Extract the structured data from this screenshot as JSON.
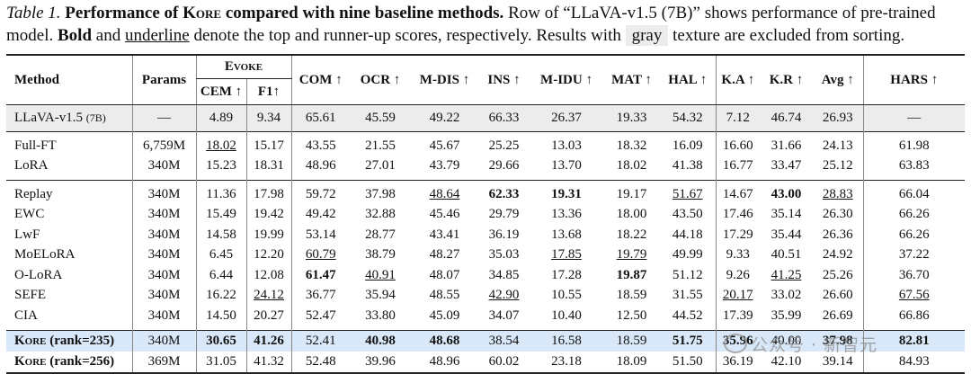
{
  "caption": {
    "label": "Table 1.",
    "title_pre": "Performance of",
    "title_method": "Kore",
    "title_post": "compared with nine baseline methods.",
    "text1": "Row of “LLaVA-v1.5 (7B)” shows performance of pre-trained model.",
    "bold_word": "Bold",
    "and_word": "and",
    "underline_word": "underline",
    "text2": "denote the top and runner-up scores, respectively. Results with",
    "gray_word": "gray",
    "text3": "texture are excluded from sorting."
  },
  "header": {
    "method": "Method",
    "params": "Params",
    "evoke": "Evoke",
    "cem": "CEM ↑",
    "f1": "F1↑",
    "com": "COM ↑",
    "ocr": "OCR ↑",
    "mdis": "M-DIS ↑",
    "ins": "INS ↑",
    "midu": "M-IDU ↑",
    "mat": "MAT ↑",
    "hal": "HAL ↑",
    "ka": "K.A ↑",
    "kr": "K.R ↑",
    "avg": "Avg ↑",
    "hars": "HARS ↑"
  },
  "rows": {
    "llava": {
      "method": "LLaVA-v1.5",
      "suffix": "(7B)",
      "params": "—",
      "cem": "4.89",
      "f1": "9.34",
      "com": "65.61",
      "ocr": "45.59",
      "mdis": "49.22",
      "ins": "66.33",
      "midu": "26.37",
      "mat": "19.33",
      "hal": "54.32",
      "ka": "7.12",
      "kr": "46.74",
      "avg": "26.93",
      "hars": "—"
    },
    "fullft": {
      "method": "Full-FT",
      "params": "6,759M",
      "cem": "18.02",
      "f1": "15.17",
      "com": "43.55",
      "ocr": "21.55",
      "mdis": "45.67",
      "ins": "25.25",
      "midu": "13.03",
      "mat": "18.32",
      "hal": "16.09",
      "ka": "16.60",
      "kr": "31.66",
      "avg": "24.13",
      "hars": "61.98"
    },
    "lora": {
      "method": "LoRA",
      "params": "340M",
      "cem": "15.23",
      "f1": "18.31",
      "com": "48.96",
      "ocr": "27.01",
      "mdis": "43.79",
      "ins": "29.66",
      "midu": "13.70",
      "mat": "18.02",
      "hal": "41.38",
      "ka": "16.77",
      "kr": "33.47",
      "avg": "25.12",
      "hars": "63.83"
    },
    "replay": {
      "method": "Replay",
      "params": "340M",
      "cem": "11.36",
      "f1": "17.98",
      "com": "59.72",
      "ocr": "37.98",
      "mdis": "48.64",
      "ins": "62.33",
      "midu": "19.31",
      "mat": "19.17",
      "hal": "51.67",
      "ka": "14.67",
      "kr": "43.00",
      "avg": "28.83",
      "hars": "66.04"
    },
    "ewc": {
      "method": "EWC",
      "params": "340M",
      "cem": "15.49",
      "f1": "19.42",
      "com": "49.42",
      "ocr": "32.88",
      "mdis": "45.46",
      "ins": "29.79",
      "midu": "13.36",
      "mat": "18.00",
      "hal": "43.50",
      "ka": "17.46",
      "kr": "35.14",
      "avg": "26.30",
      "hars": "66.26"
    },
    "lwf": {
      "method": "LwF",
      "params": "340M",
      "cem": "14.58",
      "f1": "19.99",
      "com": "53.14",
      "ocr": "28.77",
      "mdis": "43.41",
      "ins": "36.19",
      "midu": "13.68",
      "mat": "18.22",
      "hal": "44.18",
      "ka": "17.29",
      "kr": "35.44",
      "avg": "26.36",
      "hars": "66.26"
    },
    "moelora": {
      "method": "MoELoRA",
      "params": "340M",
      "cem": "6.45",
      "f1": "12.20",
      "com": "60.79",
      "ocr": "38.79",
      "mdis": "48.27",
      "ins": "35.03",
      "midu": "17.85",
      "mat": "19.79",
      "hal": "49.99",
      "ka": "9.33",
      "kr": "40.51",
      "avg": "24.92",
      "hars": "37.22"
    },
    "olora": {
      "method": "O-LoRA",
      "params": "340M",
      "cem": "6.44",
      "f1": "12.08",
      "com": "61.47",
      "ocr": "40.91",
      "mdis": "48.07",
      "ins": "34.85",
      "midu": "17.28",
      "mat": "19.87",
      "hal": "51.12",
      "ka": "9.26",
      "kr": "41.25",
      "avg": "25.26",
      "hars": "36.70"
    },
    "sefe": {
      "method": "SEFE",
      "params": "340M",
      "cem": "16.22",
      "f1": "24.12",
      "com": "36.77",
      "ocr": "35.94",
      "mdis": "48.55",
      "ins": "42.90",
      "midu": "10.55",
      "mat": "18.59",
      "hal": "31.55",
      "ka": "20.17",
      "kr": "33.02",
      "avg": "26.60",
      "hars": "67.56"
    },
    "cia": {
      "method": "CIA",
      "params": "340M",
      "cem": "14.50",
      "f1": "20.27",
      "com": "52.47",
      "ocr": "33.80",
      "mdis": "45.09",
      "ins": "34.07",
      "midu": "10.40",
      "mat": "12.50",
      "hal": "44.52",
      "ka": "17.39",
      "kr": "35.99",
      "avg": "26.69",
      "hars": "66.86"
    },
    "kore235": {
      "method": "Kore",
      "suffix": "(rank=235)",
      "params": "340M",
      "cem": "30.65",
      "f1": "41.26",
      "com": "52.41",
      "ocr": "40.98",
      "mdis": "48.68",
      "ins": "38.54",
      "midu": "16.58",
      "mat": "18.59",
      "hal": "51.75",
      "ka": "35.96",
      "kr": "40.00",
      "avg": "37.98",
      "hars": "82.81"
    },
    "kore256": {
      "method": "Kore",
      "suffix": "(rank=256)",
      "params": "369M",
      "cem": "31.05",
      "f1": "41.32",
      "com": "52.48",
      "ocr": "39.96",
      "mdis": "48.96",
      "ins": "60.02",
      "midu": "23.18",
      "mat": "18.09",
      "hal": "51.50",
      "ka": "36.19",
      "kr": "42.10",
      "avg": "39.14",
      "hars": "84.93"
    }
  },
  "watermark": "公众号 · 新智元"
}
